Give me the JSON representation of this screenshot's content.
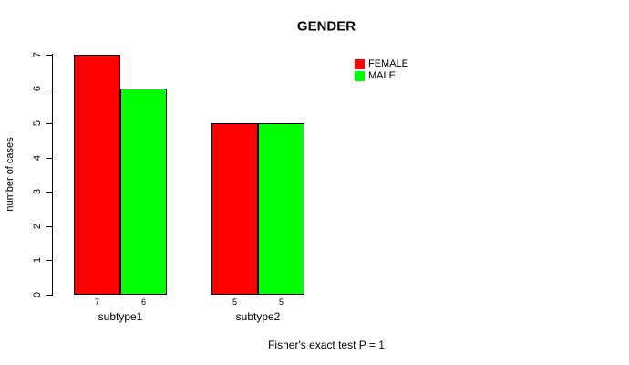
{
  "colors": {
    "female": "#FF0000",
    "male": "#00FF00",
    "axis": "#000000",
    "background": "#FFFFFF"
  },
  "chart_data": {
    "type": "bar",
    "title": "GENDER",
    "xlabel": "",
    "ylabel": "number of cases",
    "categories": [
      "subtype1",
      "subtype2"
    ],
    "series": [
      {
        "name": "FEMALE",
        "color": "#FF0000",
        "values": [
          7,
          5
        ]
      },
      {
        "name": "MALE",
        "color": "#00FF00",
        "values": [
          6,
          5
        ]
      }
    ],
    "bar_value_labels": [
      [
        "7",
        "6"
      ],
      [
        "5",
        "5"
      ]
    ],
    "ylim": [
      0,
      7
    ],
    "yticks": [
      0,
      1,
      2,
      3,
      4,
      5,
      6,
      7
    ],
    "grid": false,
    "legend_position": "top-right",
    "annotation": "Fisher's exact test P = 1"
  }
}
